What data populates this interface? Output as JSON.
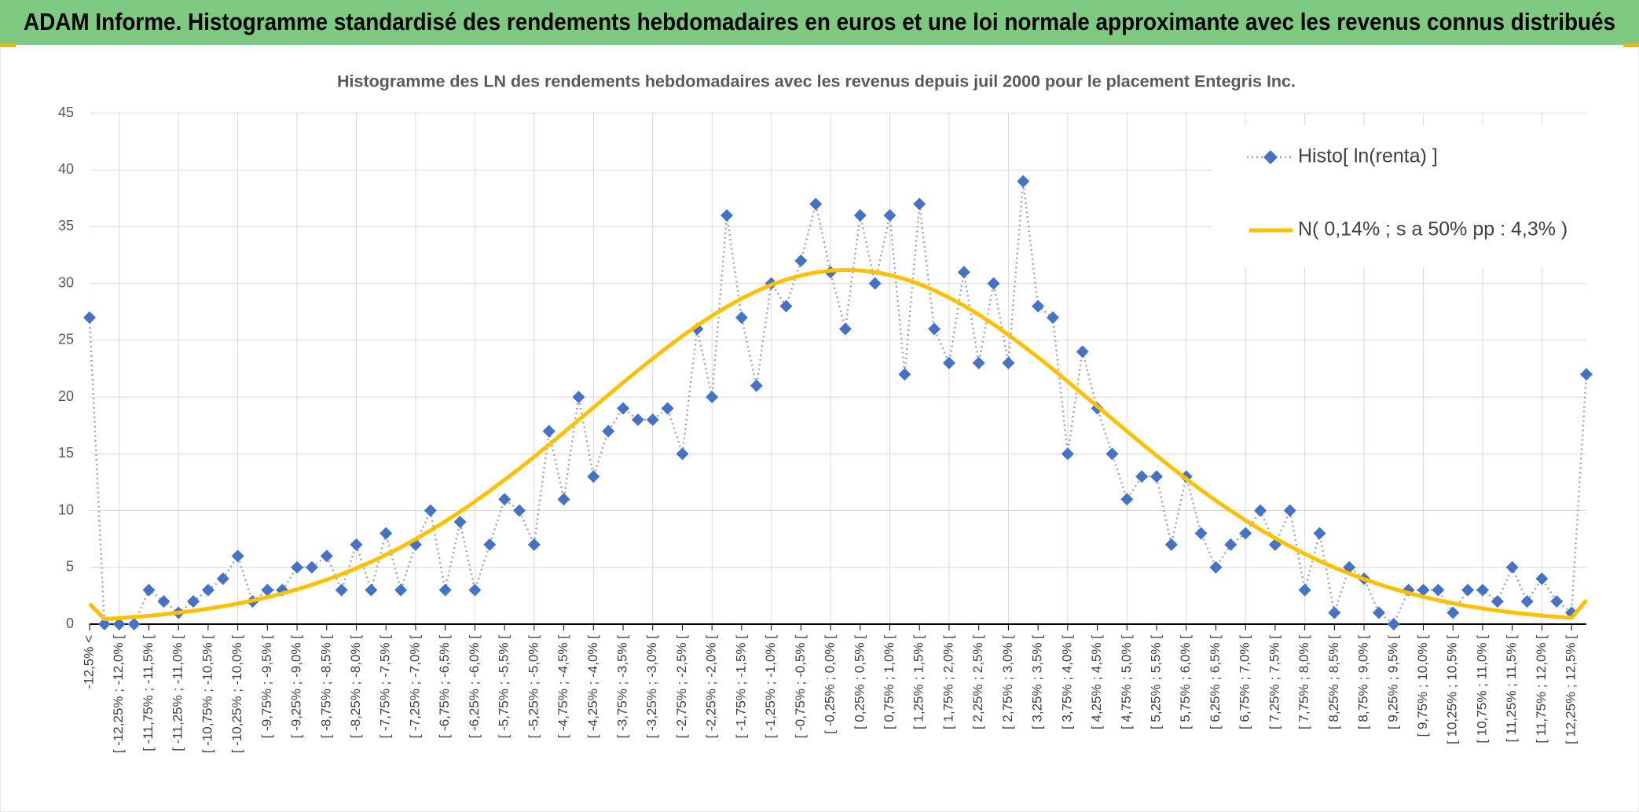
{
  "header": {
    "title": "ADAM Informe. Histogramme standardisé des rendements hebdomadaires en euros et une loi normale approximante avec les revenus connus distribués"
  },
  "chart_data": {
    "type": "line",
    "title": "Histogramme des LN des rendements hebdomadaires avec les revenus depuis juil 2000 pour le placement Entegris Inc.",
    "categories": [
      "-12,5% <",
      null,
      "[ -12,25% ; -12,0% [",
      null,
      "[ -11,75% ; -11,5% [",
      null,
      "[ -11,25% ; -11,0% [",
      null,
      "[ -10,75% ; -10,5% [",
      null,
      "[ -10,25% ; -10,0% [",
      null,
      "[ -9,75% ; -9,5% [",
      null,
      "[ -9,25% ; -9,0% [",
      null,
      "[ -8,75% ; -8,5% [",
      null,
      "[ -8,25% ; -8,0% [",
      null,
      "[ -7,75% ; -7,5% [",
      null,
      "[ -7,25% ; -7,0% [",
      null,
      "[ -6,75% ; -6,5% [",
      null,
      "[ -6,25% ; -6,0% [",
      null,
      "[ -5,75% ; -5,5% [",
      null,
      "[ -5,25% ; -5,0% [",
      null,
      "[ -4,75% ; -4,5% [",
      null,
      "[ -4,25% ; -4,0% [",
      null,
      "[ -3,75% ; -3,5% [",
      null,
      "[ -3,25% ; -3,0% [",
      null,
      "[ -2,75% ; -2,5% [",
      null,
      "[ -2,25% ; -2,0% [",
      null,
      "[ -1,75% ; -1,5% [",
      null,
      "[ -1,25% ; -1,0% [",
      null,
      "[ -0,75% ; -0,5% [",
      null,
      "[ -0,25% ; 0,0% [",
      null,
      "[ 0,25% ; 0,5% [",
      null,
      "[ 0,75% ; 1,0% [",
      null,
      "[ 1,25% ; 1,5% [",
      null,
      "[ 1,75% ; 2,0% [",
      null,
      "[ 2,25% ; 2,5% [",
      null,
      "[ 2,75% ; 3,0% [",
      null,
      "[ 3,25% ; 3,5% [",
      null,
      "[ 3,75% ; 4,0% [",
      null,
      "[ 4,25% ; 4,5% [",
      null,
      "[ 4,75% ; 5,0% [",
      null,
      "[ 5,25% ; 5,5% [",
      null,
      "[ 5,75% ; 6,0% [",
      null,
      "[ 6,25% ; 6,5% [",
      null,
      "[ 6,75% ; 7,0% [",
      null,
      "[ 7,25% ; 7,5% [",
      null,
      "[ 7,75% ; 8,0% [",
      null,
      "[ 8,25% ; 8,5% [",
      null,
      "[ 8,75% ; 9,0% [",
      null,
      "[ 9,25% ; 9,5% [",
      null,
      "[ 9,75% ; 10,0% [",
      null,
      "[ 10,25% ; 10,5% [",
      null,
      "[ 10,75% ; 11,0% [",
      null,
      "[ 11,25% ; 11,5% [",
      null,
      "[ 11,75% ; 12,0% [",
      null,
      "[ 12,25% ; 12,5% [",
      null
    ],
    "series": [
      {
        "name": "Histo[ ln(renta) ]",
        "color": "#4472c4",
        "line_color": "#a5a5a5",
        "marker": "diamond",
        "values": [
          27,
          0,
          0,
          0,
          3,
          2,
          1,
          2,
          3,
          4,
          6,
          2,
          3,
          3,
          5,
          5,
          6,
          3,
          7,
          3,
          8,
          3,
          7,
          10,
          3,
          9,
          3,
          7,
          11,
          10,
          7,
          17,
          11,
          20,
          13,
          17,
          19,
          18,
          18,
          19,
          15,
          26,
          20,
          36,
          27,
          21,
          30,
          28,
          32,
          37,
          31,
          26,
          36,
          30,
          36,
          22,
          37,
          26,
          23,
          31,
          23,
          30,
          23,
          39,
          28,
          27,
          15,
          24,
          19,
          15,
          11,
          13,
          13,
          7,
          13,
          8,
          5,
          7,
          8,
          10,
          7,
          10,
          3,
          8,
          1,
          5,
          4,
          1,
          0,
          3,
          3,
          3,
          1,
          3,
          3,
          2,
          5,
          2,
          4,
          2,
          1,
          22
        ]
      },
      {
        "name": "N( 0,14% ; s a 50% pp : 4,3% )",
        "color": "#ffc000",
        "values": [
          1.8,
          0.45,
          0.53,
          0.63,
          0.74,
          0.86,
          1.01,
          1.17,
          1.36,
          1.57,
          1.81,
          2.07,
          2.37,
          2.7,
          3.06,
          3.46,
          3.91,
          4.39,
          4.92,
          5.49,
          6.11,
          6.77,
          7.49,
          8.25,
          9.05,
          9.9,
          10.8,
          11.73,
          12.7,
          13.7,
          14.74,
          15.81,
          16.88,
          17.98,
          19.08,
          20.17,
          21.27,
          22.34,
          23.39,
          24.4,
          25.37,
          26.3,
          27.15,
          27.95,
          28.68,
          29.32,
          29.88,
          30.34,
          30.71,
          30.98,
          31.14,
          31.2,
          31.15,
          31.0,
          30.75,
          30.39,
          29.94,
          29.39,
          28.76,
          28.05,
          27.26,
          26.4,
          25.48,
          24.51,
          23.5,
          22.45,
          21.37,
          20.28,
          19.18,
          18.08,
          16.99,
          15.9,
          14.84,
          13.8,
          12.79,
          11.81,
          10.88,
          9.99,
          9.14,
          8.33,
          7.57,
          6.85,
          6.18,
          5.56,
          4.98,
          4.45,
          3.96,
          3.51,
          3.1,
          2.74,
          2.4,
          2.1,
          1.83,
          1.59,
          1.38,
          1.19,
          1.03,
          0.88,
          0.75,
          0.64,
          0.55,
          2.1
        ]
      }
    ],
    "ylim": [
      0,
      45
    ],
    "yticks": [
      0,
      5,
      10,
      15,
      20,
      25,
      30,
      35,
      40,
      45
    ],
    "grid": true,
    "legend": "upper right"
  }
}
